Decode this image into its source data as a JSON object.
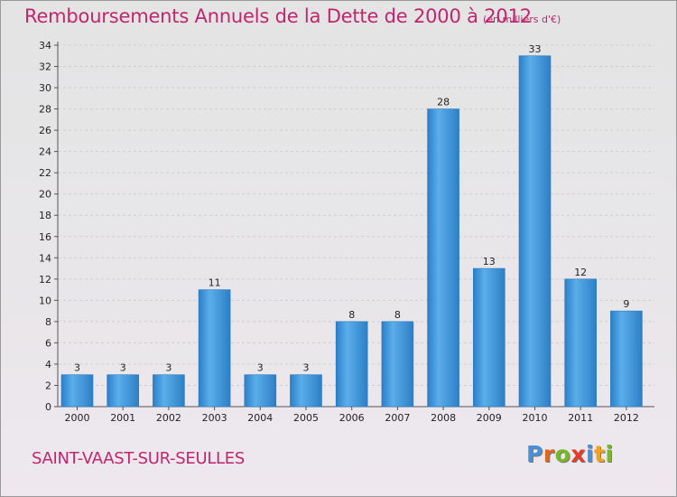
{
  "title": "Remboursements Annuels de la Dette de 2000 à 2012",
  "subtitle": "(en milliers d'€)",
  "commune": "SAINT-VAAST-SUR-SEULLES",
  "brand": {
    "text": "Proxiti",
    "letter_colors": [
      "#4a90d9",
      "#e0641e",
      "#79b928",
      "#e53a2c",
      "#4a90d9",
      "#f0a31c",
      "#79b928"
    ]
  },
  "colors": {
    "title": "#c0266e",
    "bar": "#3a8fd8",
    "bar_light": "#5aabe8",
    "bar_dark": "#2677be",
    "grid": "#cfcfcf"
  },
  "chart_data": {
    "type": "bar",
    "title": "Remboursements Annuels de la Dette de 2000 à 2012",
    "subtitle": "(en milliers d'€)",
    "xlabel": "",
    "ylabel": "",
    "categories": [
      "2000",
      "2001",
      "2002",
      "2003",
      "2004",
      "2005",
      "2006",
      "2007",
      "2008",
      "2009",
      "2010",
      "2011",
      "2012"
    ],
    "values": [
      3,
      3,
      3,
      11,
      3,
      3,
      8,
      8,
      28,
      13,
      33,
      12,
      9
    ],
    "ylim": [
      0,
      34
    ],
    "yticks": [
      0,
      2,
      4,
      6,
      8,
      10,
      12,
      14,
      16,
      18,
      20,
      22,
      24,
      26,
      28,
      30,
      32,
      34
    ],
    "grid": "horizontal dashed",
    "legend": "none"
  }
}
